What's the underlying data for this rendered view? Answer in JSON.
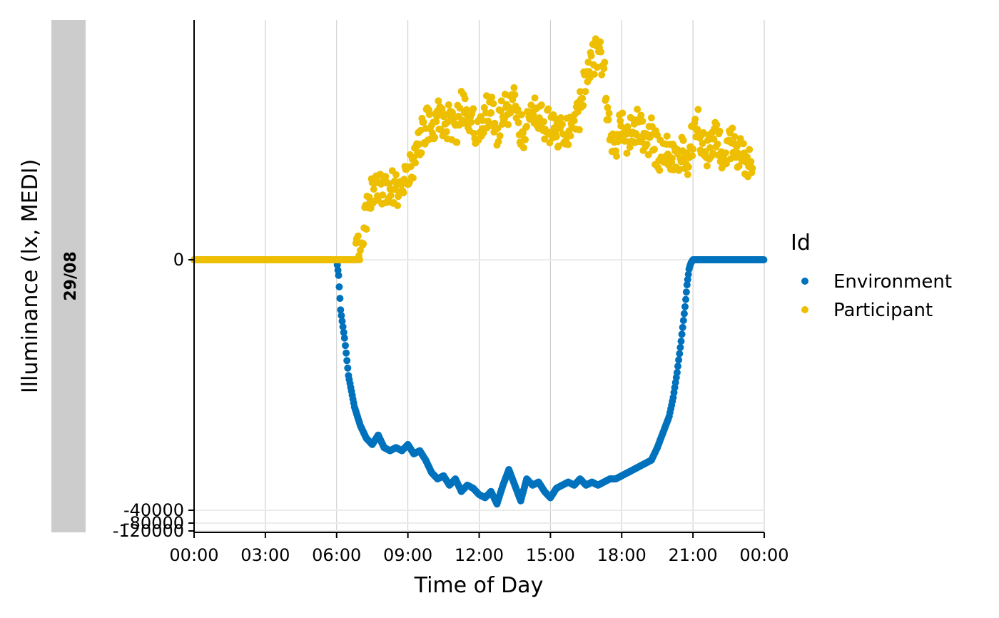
{
  "chart_data": {
    "type": "scatter",
    "facet_strip": "29/08",
    "xlabel": "Time of Day",
    "ylabel": "Illuminance (lx, MEDI)",
    "x_ticks": [
      "00:00",
      "03:00",
      "06:00",
      "09:00",
      "12:00",
      "15:00",
      "18:00",
      "21:00",
      "00:00"
    ],
    "y_ticks": [
      "-120000",
      "-80000",
      "-40000",
      "0"
    ],
    "legend_title": "Id",
    "legend_position": "right",
    "grid": true,
    "series": [
      {
        "name": "Environment",
        "color": "#0072BD",
        "x": [
          "00:00",
          "02:00",
          "04:00",
          "05:30",
          "06:00",
          "06:05",
          "06:10",
          "06:20",
          "06:30",
          "06:45",
          "07:00",
          "07:15",
          "07:30",
          "07:45",
          "08:00",
          "08:15",
          "08:30",
          "08:45",
          "09:00",
          "09:15",
          "09:30",
          "09:45",
          "10:00",
          "10:15",
          "10:30",
          "10:45",
          "11:00",
          "11:15",
          "11:30",
          "11:45",
          "12:00",
          "12:15",
          "12:30",
          "12:45",
          "13:00",
          "13:15",
          "13:30",
          "13:45",
          "14:00",
          "14:15",
          "14:30",
          "14:45",
          "15:00",
          "15:15",
          "15:30",
          "15:45",
          "16:00",
          "16:15",
          "16:30",
          "16:45",
          "17:00",
          "17:15",
          "17:30",
          "17:45",
          "18:00",
          "18:15",
          "18:30",
          "18:45",
          "19:00",
          "19:15",
          "19:30",
          "19:45",
          "20:00",
          "20:10",
          "20:20",
          "20:30",
          "20:40",
          "20:45",
          "20:50",
          "20:55",
          "21:00",
          "22:00",
          "23:00",
          "23:59"
        ],
        "y": [
          0,
          0,
          0,
          0,
          0,
          -2500,
          -8000,
          -12500,
          -18500,
          -23500,
          -26500,
          -28500,
          -29500,
          -28000,
          -30000,
          -30500,
          -30000,
          -30500,
          -29500,
          -31000,
          -30500,
          -32000,
          -34000,
          -35000,
          -34500,
          -36000,
          -35000,
          -37000,
          -36000,
          -36500,
          -37500,
          -38000,
          -37000,
          -39000,
          -36000,
          -33500,
          -36000,
          -38500,
          -35000,
          -36000,
          -35500,
          -37000,
          -38000,
          -36500,
          -36000,
          -35500,
          -36000,
          -35000,
          -36000,
          -35500,
          -36000,
          -35500,
          -35000,
          -35000,
          -34500,
          -34000,
          -33500,
          -33000,
          -32500,
          -32000,
          -30000,
          -27500,
          -25000,
          -22000,
          -18000,
          -13000,
          -7500,
          -4000,
          -1500,
          -500,
          0,
          0,
          0,
          0
        ]
      },
      {
        "name": "Participant",
        "color": "#EDBF00",
        "x": [
          "00:00",
          "03:00",
          "06:00",
          "06:15",
          "06:30",
          "06:45",
          "07:00",
          "07:15",
          "07:30",
          "07:45",
          "08:00",
          "08:15",
          "08:30",
          "08:45",
          "09:00",
          "09:15",
          "09:30",
          "09:45",
          "10:00",
          "10:15",
          "10:30",
          "10:45",
          "11:00",
          "11:15",
          "11:30",
          "11:45",
          "12:00",
          "12:15",
          "12:30",
          "12:45",
          "13:00",
          "13:15",
          "13:30",
          "13:45",
          "14:00",
          "14:15",
          "14:30",
          "14:45",
          "15:00",
          "15:15",
          "15:30",
          "15:45",
          "16:00",
          "16:15",
          "16:30",
          "16:45",
          "17:00",
          "17:15",
          "17:30",
          "17:45",
          "18:00",
          "18:15",
          "18:30",
          "18:45",
          "19:00",
          "19:15",
          "19:30",
          "19:45",
          "20:00",
          "20:15",
          "20:30",
          "20:45",
          "21:00",
          "21:15",
          "21:30",
          "21:45",
          "22:00",
          "22:15",
          "22:30",
          "22:45",
          "23:00",
          "23:15",
          "23:30"
        ],
        "y": [
          0,
          0,
          0,
          0,
          0,
          0,
          2000,
          6500,
          9500,
          9000,
          10000,
          10000,
          9500,
          10500,
          11000,
          13500,
          16500,
          18500,
          17500,
          20500,
          18500,
          19000,
          17000,
          21500,
          19500,
          18500,
          17500,
          20000,
          20500,
          16500,
          21500,
          20000,
          22000,
          18000,
          17500,
          19500,
          20000,
          17500,
          18500,
          17000,
          18500,
          17000,
          18000,
          20500,
          26000,
          27000,
          28500,
          25500,
          17500,
          16000,
          18500,
          16500,
          17500,
          18500,
          16000,
          17000,
          14500,
          14000,
          15500,
          12500,
          14500,
          13500,
          16500,
          18500,
          14000,
          15500,
          17000,
          13500,
          16500,
          15000,
          14500,
          13000,
          12500
        ]
      }
    ]
  }
}
